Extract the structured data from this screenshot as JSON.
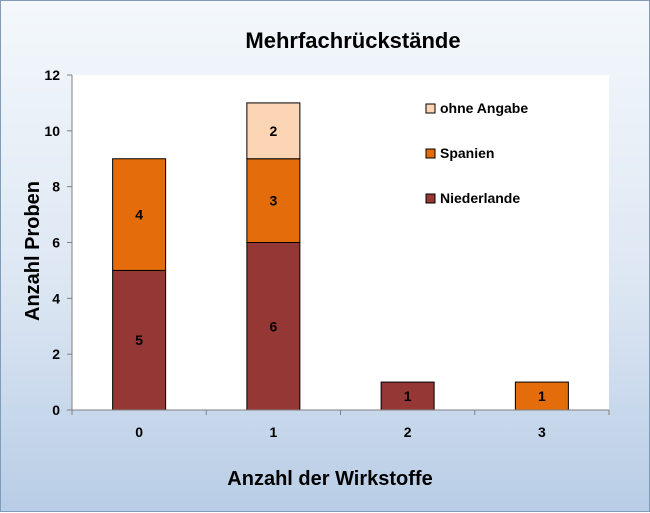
{
  "chart_data": {
    "type": "bar",
    "stacked": true,
    "title": "Mehrfachrückstände",
    "xlabel": "Anzahl der Wirkstoffe",
    "ylabel": "Anzahl  Proben",
    "categories": [
      "0",
      "1",
      "2",
      "3"
    ],
    "ylim": [
      0,
      12
    ],
    "yticks": [
      0,
      2,
      4,
      6,
      8,
      10,
      12
    ],
    "grid": false,
    "legend_position": "top-right",
    "series": [
      {
        "name": "Niederlande",
        "color": "#953735",
        "values": [
          5,
          6,
          1,
          0
        ]
      },
      {
        "name": "Spanien",
        "color": "#e46c0a",
        "values": [
          4,
          3,
          0,
          1
        ]
      },
      {
        "name": "ohne Angabe",
        "color": "#fcd5b5",
        "values": [
          0,
          2,
          0,
          0
        ]
      }
    ],
    "legend_order": [
      "ohne Angabe",
      "Spanien",
      "Niederlande"
    ]
  }
}
